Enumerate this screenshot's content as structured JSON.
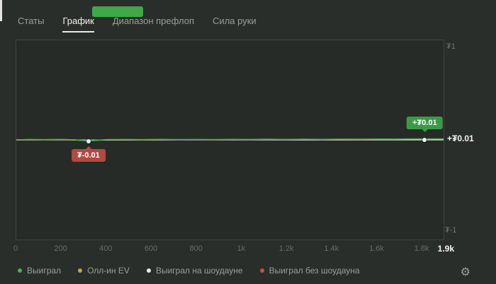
{
  "tabs": {
    "items": [
      {
        "label": "Статы"
      },
      {
        "label": "График",
        "active": true
      },
      {
        "label": "Диапазон префлоп"
      },
      {
        "label": "Сила руки"
      }
    ]
  },
  "overlay": {
    "color": "#3fa848"
  },
  "chart_data": {
    "type": "line",
    "title": "",
    "xlabel": "",
    "ylabel": "",
    "x_max": 1900,
    "ylim": [
      -1,
      1
    ],
    "grid": false,
    "legend_position": "bottom",
    "y_top_label": "₮1",
    "y_bottom_label": "₮-1",
    "current_value_label": "+₮0.01",
    "x_ticks": [
      "0",
      "200",
      "400",
      "600",
      "800",
      "1k",
      "1.2k",
      "1.4k",
      "1.6k",
      "1.8k"
    ],
    "x_tick_values": [
      0,
      200,
      400,
      600,
      800,
      1000,
      1200,
      1400,
      1600,
      1800
    ],
    "x_current_label": "1.9k",
    "colors": {
      "grid": "#4a4f4a",
      "axis_text": "#666d66"
    },
    "series": [
      {
        "name": "Выиграл без шоудауна",
        "color": "#c0524a",
        "width": 1.3,
        "points": [
          [
            0,
            0
          ],
          [
            200,
            0.001
          ],
          [
            320,
            -0.004
          ],
          [
            500,
            0.001
          ],
          [
            800,
            0.002
          ],
          [
            1100,
            0.002
          ],
          [
            1400,
            0.002
          ],
          [
            1700,
            0.003
          ],
          [
            1900,
            0.003
          ]
        ]
      },
      {
        "name": "Олл-ин EV",
        "color": "#b9a84c",
        "width": 1.4,
        "points": [
          [
            0,
            0
          ],
          [
            100,
            0.002
          ],
          [
            200,
            0.003
          ],
          [
            320,
            -0.006
          ],
          [
            400,
            0.001
          ],
          [
            500,
            0.002
          ],
          [
            600,
            0.001
          ],
          [
            700,
            0.002
          ],
          [
            800,
            0.002
          ],
          [
            900,
            0.001
          ],
          [
            1000,
            0.003
          ],
          [
            1100,
            0.002
          ],
          [
            1200,
            0.003
          ],
          [
            1300,
            0.003
          ],
          [
            1400,
            0.004
          ],
          [
            1500,
            0.004
          ],
          [
            1600,
            0.005
          ],
          [
            1700,
            0.006
          ],
          [
            1800,
            0.007
          ],
          [
            1900,
            0.007
          ]
        ]
      },
      {
        "name": "Выиграл на шоудауне",
        "color": "#e8e8e4",
        "width": 1.4,
        "points": [
          [
            0,
            0
          ],
          [
            200,
            0.001
          ],
          [
            320,
            -0.002
          ],
          [
            600,
            0
          ],
          [
            900,
            0.001
          ],
          [
            1200,
            0
          ],
          [
            1500,
            0.001
          ],
          [
            1800,
            0.001
          ],
          [
            1900,
            0.001
          ]
        ]
      },
      {
        "name": "Выиграл",
        "color": "#4caf50",
        "width": 1.6,
        "points": [
          [
            0,
            0
          ],
          [
            60,
            0.004
          ],
          [
            120,
            0.002
          ],
          [
            200,
            0.005
          ],
          [
            260,
            0.001
          ],
          [
            320,
            -0.01
          ],
          [
            400,
            0.002
          ],
          [
            480,
            0.004
          ],
          [
            560,
            0.002
          ],
          [
            640,
            0.005
          ],
          [
            720,
            0.003
          ],
          [
            800,
            0.004
          ],
          [
            880,
            0.003
          ],
          [
            960,
            0.005
          ],
          [
            1040,
            0.004
          ],
          [
            1120,
            0.006
          ],
          [
            1200,
            0.004
          ],
          [
            1280,
            0.006
          ],
          [
            1360,
            0.005
          ],
          [
            1440,
            0.007
          ],
          [
            1520,
            0.006
          ],
          [
            1600,
            0.008
          ],
          [
            1680,
            0.008
          ],
          [
            1760,
            0.009
          ],
          [
            1810,
            0.01
          ],
          [
            1900,
            0.01
          ]
        ]
      }
    ],
    "annotations": [
      {
        "label": "₮-0.01",
        "x": 320,
        "y": -0.01,
        "variant": "negative",
        "color": "#b04a43"
      },
      {
        "label": "+₮0.01",
        "x": 1810,
        "y": 0.01,
        "variant": "positive",
        "color": "#3c9a47"
      }
    ]
  },
  "legend": {
    "items": [
      {
        "label": "Выиграл",
        "color": "#4caf50"
      },
      {
        "label": "Олл-ин EV",
        "color": "#b9a84c"
      },
      {
        "label": "Выиграл на шоудауне",
        "color": "#e8e8e4"
      },
      {
        "label": "Выиграл без шоудауна",
        "color": "#c0524a"
      }
    ]
  },
  "settings_icon": "⚙"
}
